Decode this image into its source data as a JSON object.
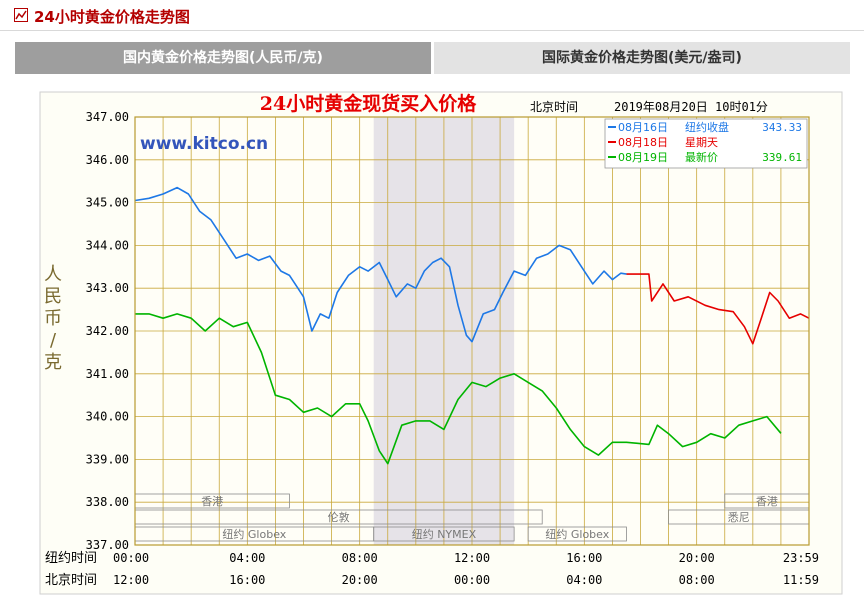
{
  "header": {
    "title": "24小时黄金价格走势图",
    "icon": "chart-icon"
  },
  "tabs": [
    {
      "label": "国内黄金价格走势图(人民币/克)",
      "active": true
    },
    {
      "label": "国际黄金价格走势图(美元/盎司)",
      "active": false
    }
  ],
  "chart_data": {
    "type": "line",
    "title": "24小时黄金现货买入价格",
    "tz_label": "北京时间",
    "timestamp": "2019年08月20日 10时01分",
    "watermark": "www.kitco.cn",
    "ylabel": "人民币/克",
    "ylim": [
      337,
      347
    ],
    "y_ticks": [
      "347.00",
      "346.00",
      "345.00",
      "344.00",
      "343.00",
      "342.00",
      "341.00",
      "340.00",
      "339.00",
      "338.00",
      "337.00"
    ],
    "xlim": [
      0,
      24
    ],
    "x_row_labels": [
      "纽约时间",
      "北京时间"
    ],
    "x_ticks_ny": [
      "00:00",
      "04:00",
      "08:00",
      "12:00",
      "16:00",
      "20:00",
      "23:59"
    ],
    "x_ticks_bj": [
      "12:00",
      "16:00",
      "20:00",
      "00:00",
      "04:00",
      "08:00",
      "11:59"
    ],
    "x_tick_hours": [
      0,
      4,
      8,
      12,
      16,
      20,
      24
    ],
    "shaded_range": [
      8.5,
      13.5
    ],
    "grid": true,
    "legend_position": "top-right",
    "legend": [
      {
        "date": "08月16日",
        "label": "纽约收盘",
        "value": "343.33",
        "color": "#1e78e6"
      },
      {
        "date": "08月18日",
        "label": "星期天",
        "value": "",
        "color": "#e60000"
      },
      {
        "date": "08月19日",
        "label": "最新价",
        "value": "339.61",
        "color": "#00b400"
      }
    ],
    "sessions": [
      {
        "label": "香港",
        "row": 1,
        "start": 0,
        "end": 5.5
      },
      {
        "label": "伦敦",
        "row": 2,
        "start": 0,
        "end": 14.5
      },
      {
        "label": "纽约 Globex",
        "row": 3,
        "start": 0,
        "end": 8.5
      },
      {
        "label": "纽约 NYMEX",
        "row": 3,
        "start": 8.5,
        "end": 13.5
      },
      {
        "label": "纽约 Globex",
        "row": 3,
        "start": 14,
        "end": 17.5
      },
      {
        "label": "香港",
        "row": 1,
        "start": 21,
        "end": 24
      },
      {
        "label": "悉尼",
        "row": 2,
        "start": 19,
        "end": 24
      }
    ],
    "series": [
      {
        "name": "08月16日",
        "color": "#1e78e6",
        "x": [
          0,
          0.5,
          1,
          1.5,
          1.9,
          2.3,
          2.7,
          3.2,
          3.6,
          4,
          4.4,
          4.8,
          5.2,
          5.5,
          5.8,
          6,
          6.3,
          6.6,
          6.9,
          7.2,
          7.6,
          8,
          8.3,
          8.7,
          9,
          9.3,
          9.7,
          10,
          10.3,
          10.6,
          10.9,
          11.2,
          11.5,
          11.8,
          12,
          12.4,
          12.8,
          13.1,
          13.5,
          13.9,
          14.3,
          14.7,
          15.1,
          15.5,
          15.9,
          16.3,
          16.7,
          17,
          17.3,
          17.5
        ],
        "y": [
          345.05,
          345.1,
          345.2,
          345.35,
          345.2,
          344.8,
          344.6,
          344.1,
          343.7,
          343.8,
          343.65,
          343.75,
          343.4,
          343.3,
          343.0,
          342.8,
          342.0,
          342.4,
          342.3,
          342.9,
          343.3,
          343.5,
          343.4,
          343.6,
          343.2,
          342.8,
          343.1,
          343.0,
          343.4,
          343.6,
          343.7,
          343.5,
          342.6,
          341.9,
          341.75,
          342.4,
          342.5,
          342.9,
          343.4,
          343.3,
          343.7,
          343.8,
          344.0,
          343.9,
          343.5,
          343.1,
          343.4,
          343.2,
          343.35,
          343.33
        ]
      },
      {
        "name": "08月18日",
        "color": "#e60000",
        "x": [
          17.5,
          18.3,
          18.4,
          18.8,
          19.2,
          19.7,
          20.3,
          20.8,
          21.3,
          21.7,
          22,
          22.3,
          22.6,
          22.9,
          23.3,
          23.7,
          24
        ],
        "y": [
          343.33,
          343.33,
          342.7,
          343.1,
          342.7,
          342.8,
          342.6,
          342.5,
          342.45,
          342.1,
          341.7,
          342.3,
          342.9,
          342.7,
          342.3,
          342.4,
          342.3
        ]
      },
      {
        "name": "08月19日",
        "color": "#00b400",
        "x": [
          0,
          0.5,
          1,
          1.5,
          2,
          2.5,
          3,
          3.5,
          4,
          4.5,
          5,
          5.5,
          6,
          6.5,
          7,
          7.5,
          8,
          8.3,
          8.7,
          9,
          9.5,
          10,
          10.5,
          11,
          11.5,
          12,
          12.5,
          13,
          13.5,
          14,
          14.5,
          15,
          15.5,
          16,
          16.5,
          17,
          17.5,
          18.3,
          18.6,
          19,
          19.5,
          20,
          20.5,
          21,
          21.5,
          22,
          22.5,
          23
        ],
        "y": [
          342.4,
          342.4,
          342.3,
          342.4,
          342.3,
          342.0,
          342.3,
          342.1,
          342.2,
          341.5,
          340.5,
          340.4,
          340.1,
          340.2,
          340.0,
          340.3,
          340.3,
          339.9,
          339.2,
          338.9,
          339.8,
          339.9,
          339.9,
          339.7,
          340.4,
          340.8,
          340.7,
          340.9,
          341.0,
          340.8,
          340.6,
          340.2,
          339.7,
          339.3,
          339.1,
          339.4,
          339.4,
          339.35,
          339.8,
          339.6,
          339.3,
          339.4,
          339.6,
          339.5,
          339.8,
          339.9,
          340.0,
          339.61
        ]
      }
    ]
  }
}
